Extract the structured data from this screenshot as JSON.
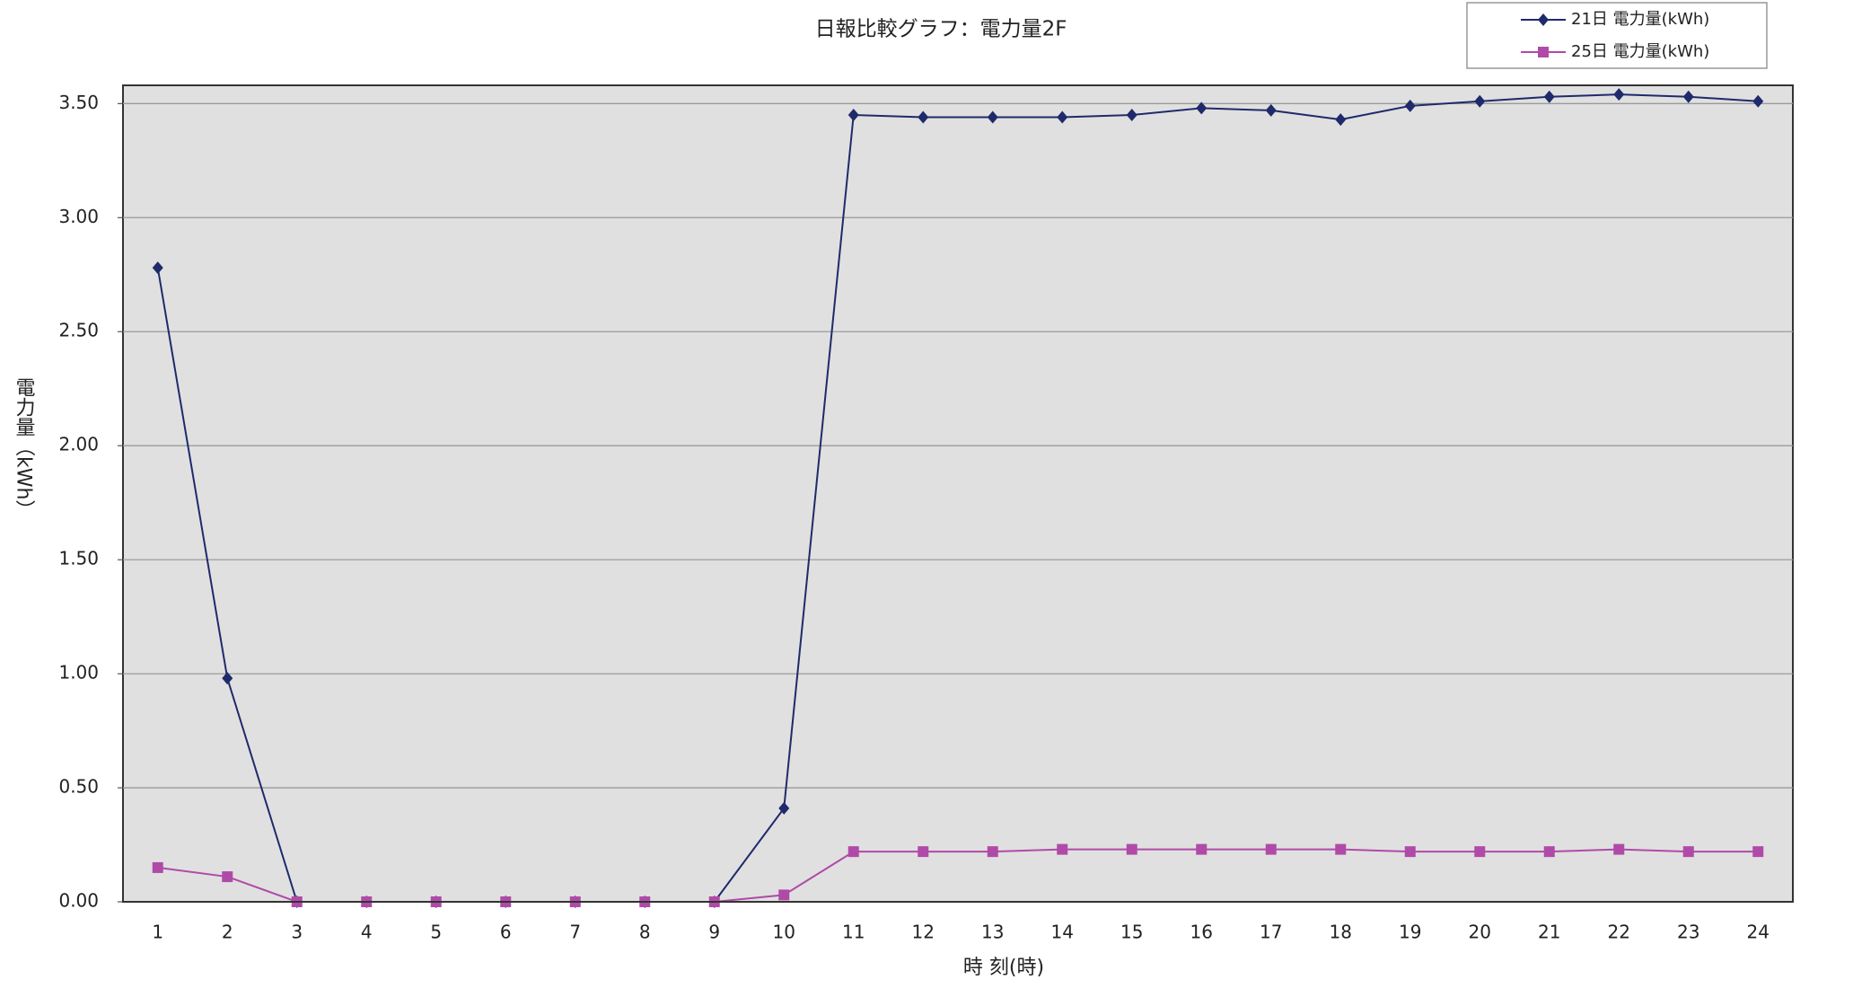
{
  "chart_data": {
    "type": "line",
    "title": "日報比較グラフ：電力量2F",
    "x_label": "時 刻(時)",
    "y_label": "電力量（kWh）",
    "categories": [
      "1",
      "2",
      "3",
      "4",
      "5",
      "6",
      "7",
      "8",
      "9",
      "10",
      "11",
      "12",
      "13",
      "14",
      "15",
      "16",
      "17",
      "18",
      "19",
      "20",
      "21",
      "22",
      "23",
      "24"
    ],
    "series": [
      {
        "name": "21日 電力量(kWh)",
        "color": "#1f2a6b",
        "marker": "diamond",
        "values": [
          2.78,
          0.98,
          0,
          0,
          0,
          0,
          0,
          0,
          0,
          0.41,
          3.45,
          3.44,
          3.44,
          3.44,
          3.45,
          3.48,
          3.47,
          3.43,
          3.49,
          3.51,
          3.53,
          3.54,
          3.53,
          3.51
        ]
      },
      {
        "name": "25日 電力量(kWh)",
        "color": "#b04aa8",
        "marker": "square",
        "values": [
          0.15,
          0.11,
          0,
          0,
          0,
          0,
          0,
          0,
          0,
          0.03,
          0.22,
          0.22,
          0.22,
          0.23,
          0.23,
          0.23,
          0.23,
          0.23,
          0.22,
          0.22,
          0.22,
          0.23,
          0.22,
          0.22
        ]
      }
    ],
    "ylim": [
      0,
      3.58
    ],
    "yticks": [
      {
        "value": 0,
        "label": "0.00"
      },
      {
        "value": 0.5,
        "label": "0.50"
      },
      {
        "value": 1,
        "label": "1.00"
      },
      {
        "value": 1.5,
        "label": "1.50"
      },
      {
        "value": 2,
        "label": "2.00"
      },
      {
        "value": 2.5,
        "label": "2.50"
      },
      {
        "value": 3,
        "label": "3.00"
      },
      {
        "value": 3.5,
        "label": "3.50"
      }
    ],
    "grid": true,
    "legend": "top-right"
  }
}
